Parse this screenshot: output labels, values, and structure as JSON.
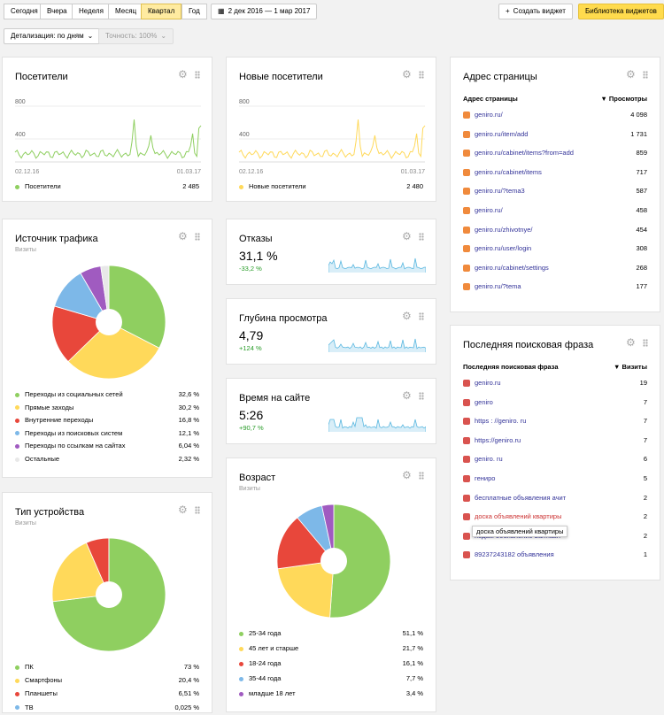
{
  "toolbar": {
    "periods": [
      "Сегодня",
      "Вчера",
      "Неделя",
      "Месяц",
      "Квартал",
      "Год"
    ],
    "active_period": "Квартал",
    "date_range": "2 дек 2016 — 1 мар 2017",
    "add_widget": "Создать виджет",
    "library": "Библиотека виджетов",
    "detail": "Детализация: по дням",
    "accuracy": "Точность: 100%"
  },
  "colors": {
    "green": "#8fcf60",
    "yellow": "#ffd95a",
    "red": "#e8473b",
    "blue": "#7db8e8",
    "purple": "#a05bc0",
    "line": "#5bb8e0"
  },
  "visitors": {
    "title": "Посетители",
    "y_ticks": [
      "800",
      "400"
    ],
    "x_start": "02.12.16",
    "x_end": "01.03.17",
    "legend": "Посетители",
    "total": "2 485"
  },
  "new_visitors": {
    "title": "Новые посетители",
    "y_ticks": [
      "800",
      "400"
    ],
    "x_start": "02.12.16",
    "x_end": "01.03.17",
    "legend": "Новые посетители",
    "total": "2 480"
  },
  "traffic": {
    "title": "Источник трафика",
    "subtitle": "Визиты",
    "rows": [
      {
        "label": "Переходы из социальных сетей",
        "value": "32,6 %",
        "color": "#8fcf60"
      },
      {
        "label": "Прямые заходы",
        "value": "30,2 %",
        "color": "#ffd95a"
      },
      {
        "label": "Внутренние переходы",
        "value": "16,8 %",
        "color": "#e8473b"
      },
      {
        "label": "Переходы из поисковых систем",
        "value": "12,1 %",
        "color": "#7db8e8"
      },
      {
        "label": "Переходы по ссылкам на сайтах",
        "value": "6,04 %",
        "color": "#a05bc0"
      },
      {
        "label": "Остальные",
        "value": "2,32 %",
        "color": "#e8e8e8"
      }
    ]
  },
  "devices": {
    "title": "Тип устройства",
    "subtitle": "Визиты",
    "rows": [
      {
        "label": "ПК",
        "value": "73 %",
        "color": "#8fcf60"
      },
      {
        "label": "Смартфоны",
        "value": "20,4 %",
        "color": "#ffd95a"
      },
      {
        "label": "Планшеты",
        "value": "6,51 %",
        "color": "#e8473b"
      },
      {
        "label": "ТВ",
        "value": "0,025 %",
        "color": "#7db8e8"
      }
    ]
  },
  "bounce": {
    "title": "Отказы",
    "value": "31,1 %",
    "change": "-33,2 %"
  },
  "depth": {
    "title": "Глубина просмотра",
    "value": "4,79",
    "change": "+124 %"
  },
  "time": {
    "title": "Время на сайте",
    "value": "5:26",
    "change": "+90,7 %"
  },
  "age": {
    "title": "Возраст",
    "subtitle": "Визиты",
    "rows": [
      {
        "label": "25-34 года",
        "value": "51,1 %",
        "color": "#8fcf60"
      },
      {
        "label": "45 лет и старше",
        "value": "21,7 %",
        "color": "#ffd95a"
      },
      {
        "label": "18-24 года",
        "value": "16,1 %",
        "color": "#e8473b"
      },
      {
        "label": "35-44 года",
        "value": "7,7 %",
        "color": "#7db8e8"
      },
      {
        "label": "младше 18 лет",
        "value": "3,4 %",
        "color": "#a05bc0"
      }
    ]
  },
  "pages": {
    "title": "Адрес страницы",
    "col1": "Адрес страницы",
    "col2": "▼ Просмотры",
    "rows": [
      {
        "label": "geniro.ru/",
        "value": "4 098"
      },
      {
        "label": "geniro.ru/item/add",
        "value": "1 731"
      },
      {
        "label": "geniro.ru/cabinet/items?from=add",
        "value": "859"
      },
      {
        "label": "geniro.ru/cabinet/items",
        "value": "717"
      },
      {
        "label": "geniro.ru/?tema3",
        "value": "587"
      },
      {
        "label": "geniro.ru/",
        "value": "458"
      },
      {
        "label": "geniro.ru/zhivotnye/",
        "value": "454"
      },
      {
        "label": "geniro.ru/user/login",
        "value": "308"
      },
      {
        "label": "geniro.ru/cabinet/settings",
        "value": "268"
      },
      {
        "label": "geniro.ru/?tema",
        "value": "177"
      }
    ]
  },
  "search": {
    "title": "Последняя поисковая фраза",
    "col1": "Последняя поисковая фраза",
    "col2": "▼ Визиты",
    "rows": [
      {
        "label": "geniro.ru",
        "value": "19"
      },
      {
        "label": "geniro",
        "value": "7"
      },
      {
        "label": "https : //geniro. ru",
        "value": "7"
      },
      {
        "label": "https://geniro.ru",
        "value": "7"
      },
      {
        "label": "geniro. ru",
        "value": "6"
      },
      {
        "label": "гениро",
        "value": "5"
      },
      {
        "label": "бесплатные объявления ачит",
        "value": "2"
      },
      {
        "label": "доска объявлений квартиры",
        "value": "2"
      },
      {
        "label": "подам объявление barmash",
        "value": "2"
      },
      {
        "label": "89237243182 объявления",
        "value": "1"
      }
    ],
    "tooltip": "доска объявлений квартиры"
  }
}
